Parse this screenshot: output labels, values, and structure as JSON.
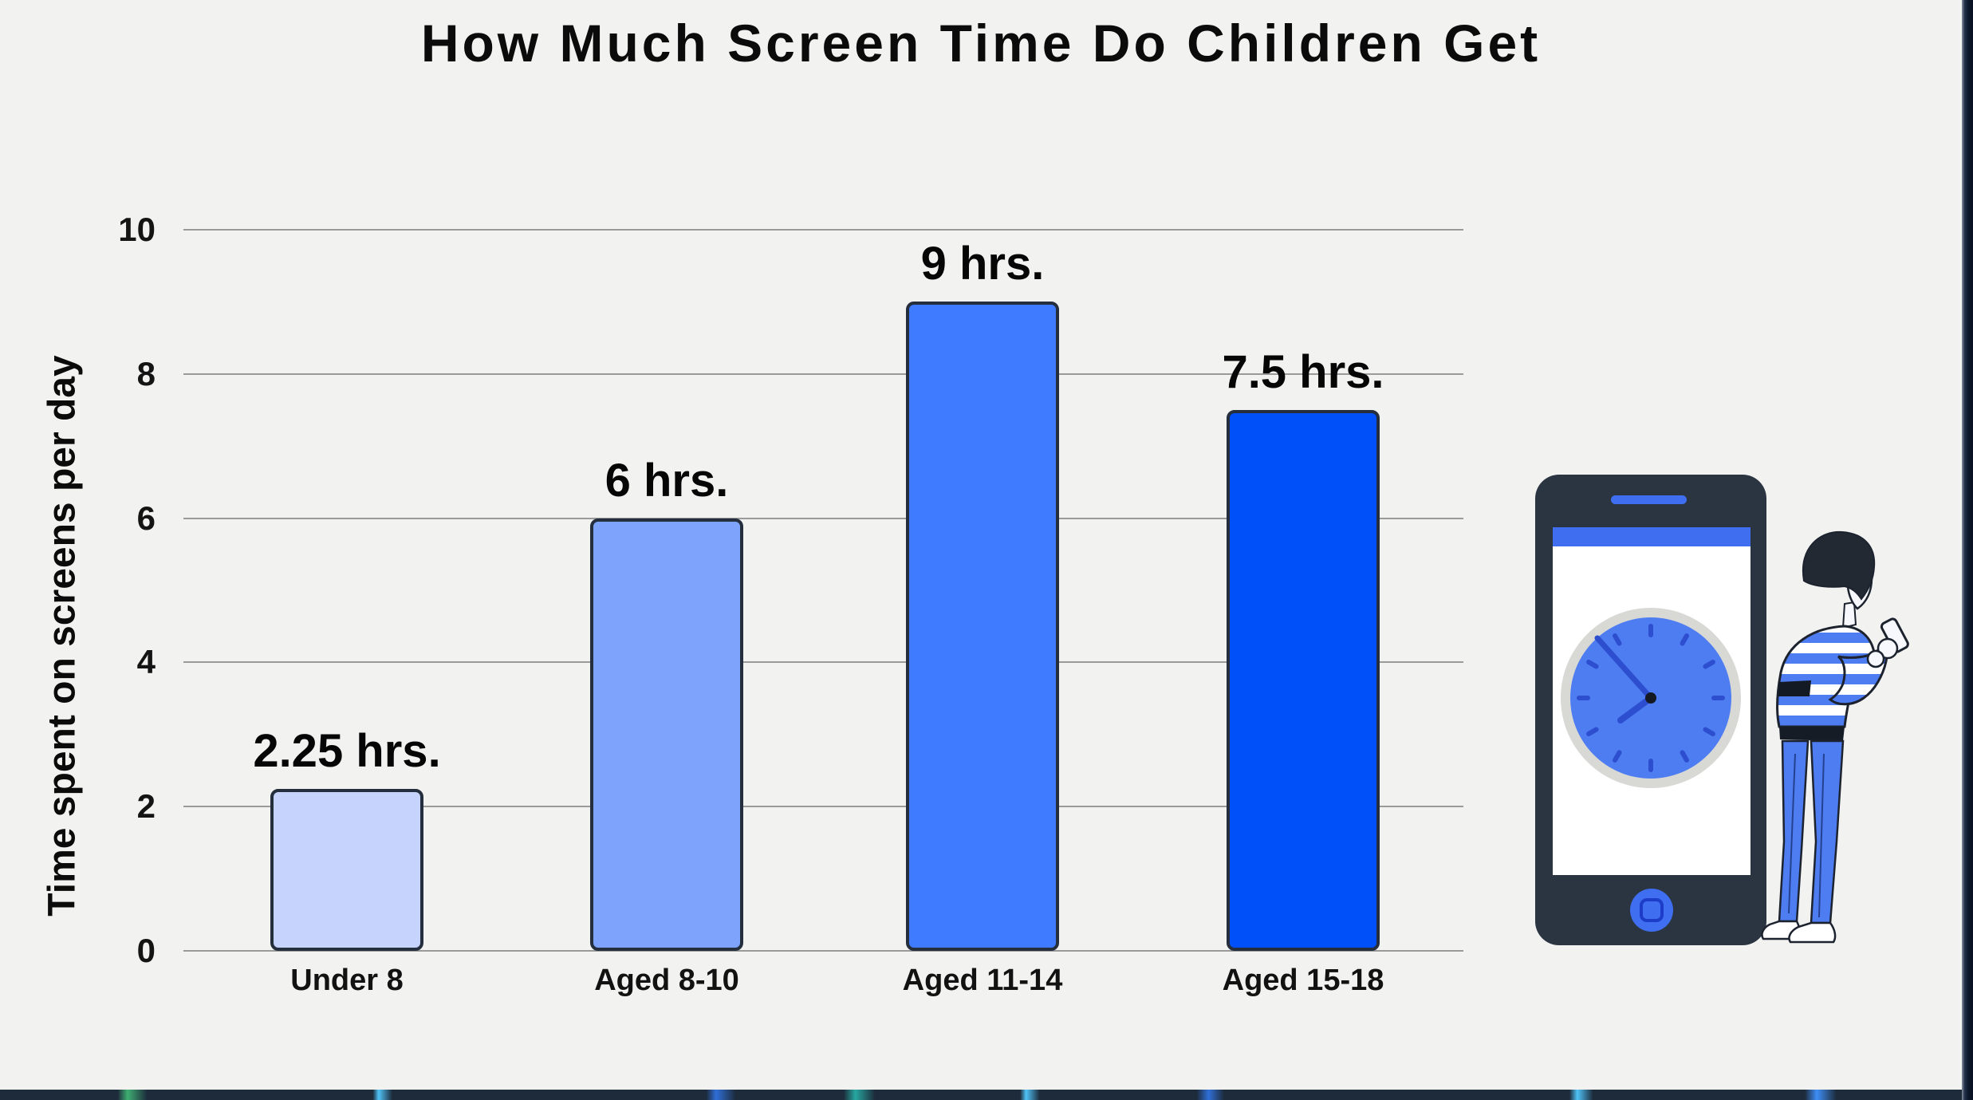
{
  "page": {
    "background_color": "#f2f2f0",
    "right_edge_strip_color": "#0b1628",
    "bottom_edge_strip_color": "#1d2b3b"
  },
  "chart_data": {
    "type": "bar",
    "title": "How Much Screen Time Do Children Get",
    "xlabel": "",
    "ylabel": "Time spent on screens per day",
    "categories": [
      "Under 8",
      "Aged 8-10",
      "Aged 11-14",
      "Aged 15-18"
    ],
    "values": [
      2.25,
      6,
      9,
      7.5
    ],
    "value_labels": [
      "2.25 hrs.",
      "6 hrs.",
      "9 hrs.",
      "7.5 hrs."
    ],
    "bar_colors": [
      "#c6d4fd",
      "#7da3fd",
      "#3f7bfe",
      "#0050fa"
    ],
    "bar_border_color": "#242e3c",
    "yticks": [
      10,
      8,
      6,
      4,
      2,
      0
    ],
    "ylim": [
      0,
      10
    ],
    "grid": true,
    "gridline_color": "#9a9a9a",
    "legend": "none"
  },
  "illustration": {
    "description": "phone with clock and person looking at smartphone",
    "phone_frame_color": "#2b3542",
    "accent_blue": "#3f6ef1",
    "clock_face_color": "#4e7df2",
    "clock_ring_color": "#d8d8d5"
  }
}
